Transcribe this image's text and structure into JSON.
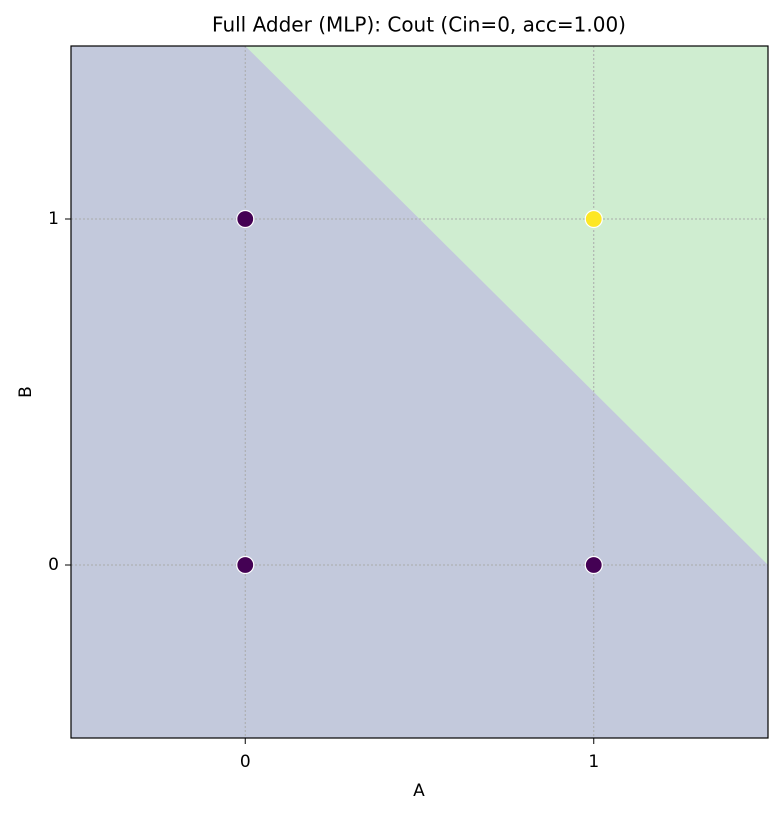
{
  "chart_data": {
    "type": "scatter",
    "title": "Full Adder (MLP): Cout (Cin=0, acc=1.00)",
    "x_label": "A",
    "y_label": "B",
    "x": [
      0,
      0,
      1,
      1
    ],
    "y": [
      0,
      1,
      0,
      1
    ],
    "classes": [
      0,
      0,
      0,
      1
    ],
    "class_colors": [
      "#440154",
      "#fde725"
    ],
    "region_colors": [
      "#c3c9dc",
      "#cfedd0"
    ],
    "boundary": {
      "x": [
        0,
        1.5
      ],
      "y": [
        1.5,
        0
      ]
    },
    "xlim": [
      -0.5,
      1.5
    ],
    "ylim": [
      -0.5,
      1.5
    ],
    "xticks": [
      0,
      1
    ],
    "yticks": [
      0,
      1
    ],
    "grid": true
  }
}
